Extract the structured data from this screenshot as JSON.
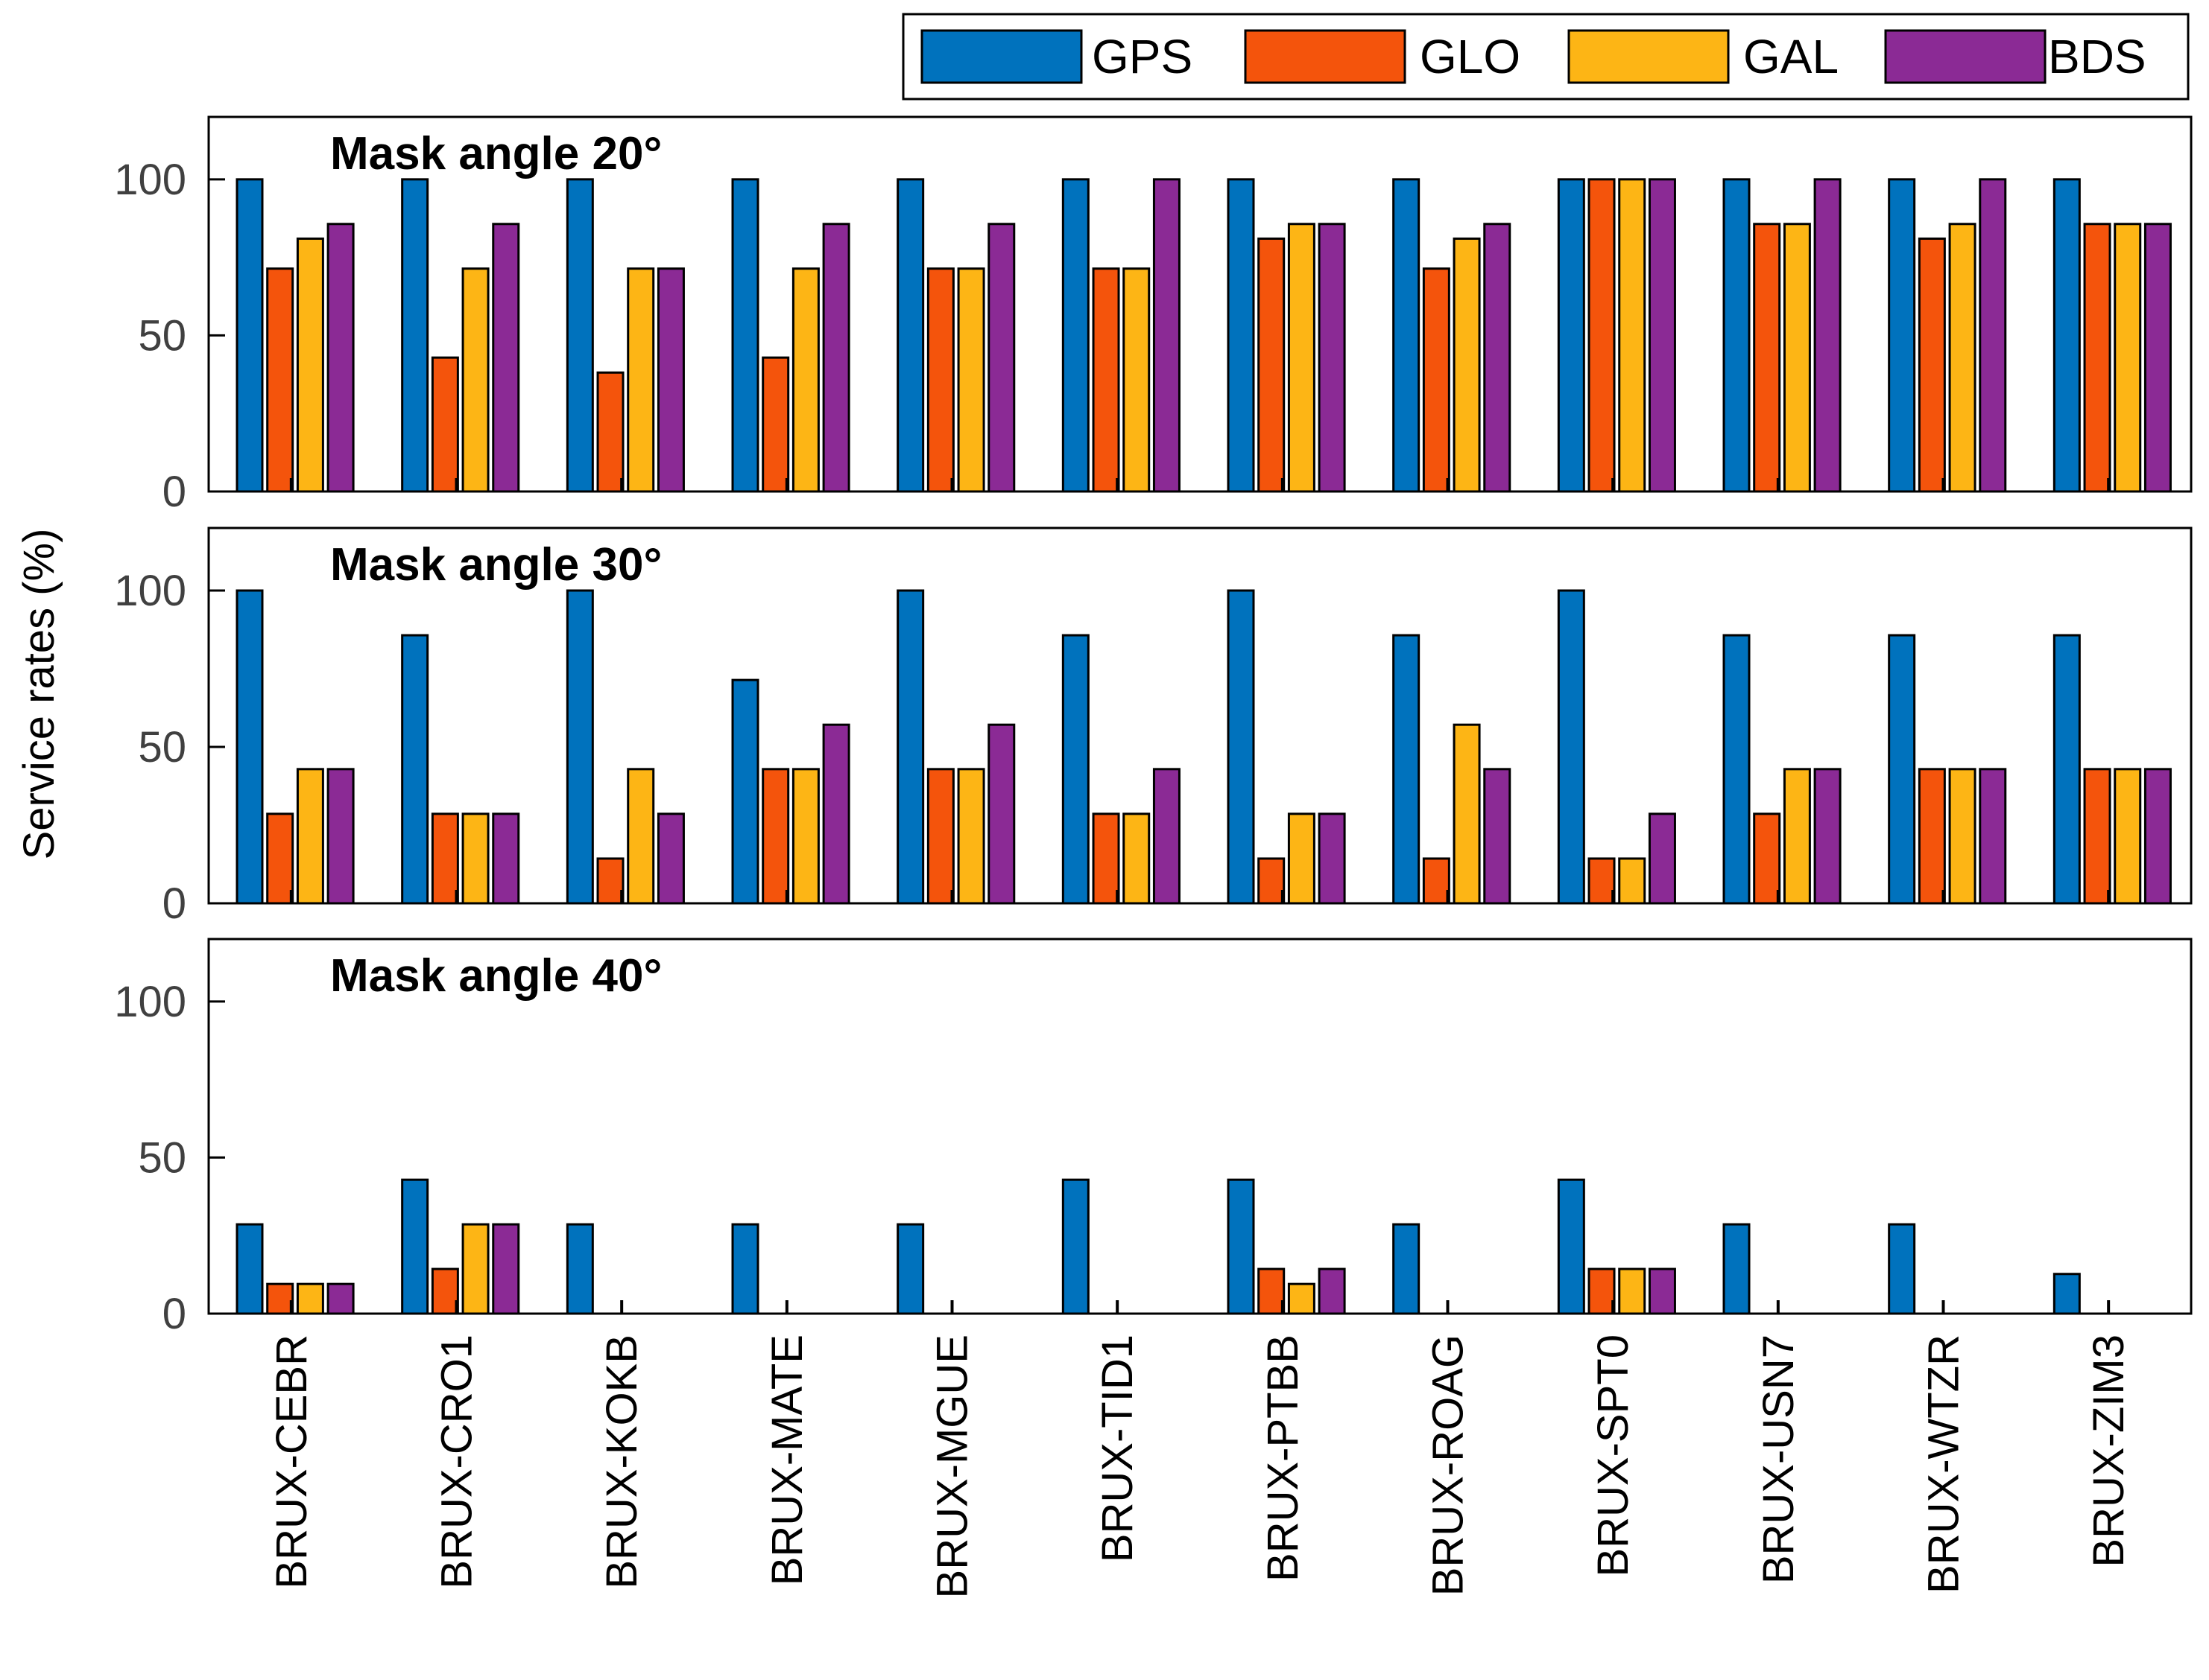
{
  "chart_data": {
    "type": "bar",
    "ylabel": "Service rates (%)",
    "ylim": [
      0,
      120
    ],
    "yticks": [
      0,
      50,
      100
    ],
    "categories": [
      "BRUX-CEBR",
      "BRUX-CRO1",
      "BRUX-KOKB",
      "BRUX-MATE",
      "BRUX-MGUE",
      "BRUX-TID1",
      "BRUX-PTBB",
      "BRUX-ROAG",
      "BRUX-SPT0",
      "BRUX-USN7",
      "BRUX-WTZR",
      "BRUX-ZIM3"
    ],
    "legend": {
      "placement": "top-right",
      "entries": [
        {
          "name": "GPS",
          "color": "#0072BD"
        },
        {
          "name": "GLO",
          "color": "#F4540C"
        },
        {
          "name": "GAL",
          "color": "#FDB515"
        },
        {
          "name": "BDS",
          "color": "#8B2A95"
        }
      ]
    },
    "panels": [
      {
        "title": "Mask angle 20°",
        "series": [
          {
            "name": "GPS",
            "values": [
              100,
              100,
              100,
              100,
              100,
              100,
              100,
              100,
              100,
              100,
              100,
              100
            ]
          },
          {
            "name": "GLO",
            "values": [
              71.4,
              42.9,
              38.1,
              42.9,
              71.4,
              71.4,
              81,
              71.4,
              100,
              85.7,
              81,
              85.7
            ]
          },
          {
            "name": "GAL",
            "values": [
              81,
              71.4,
              71.4,
              71.4,
              71.4,
              71.4,
              85.7,
              81,
              100,
              85.7,
              85.7,
              85.7
            ]
          },
          {
            "name": "BDS",
            "values": [
              85.7,
              85.7,
              71.4,
              85.7,
              85.7,
              100,
              85.7,
              85.7,
              100,
              100,
              100,
              85.7
            ]
          }
        ]
      },
      {
        "title": "Mask angle 30°",
        "series": [
          {
            "name": "GPS",
            "values": [
              100,
              85.7,
              100,
              71.4,
              100,
              85.7,
              100,
              85.7,
              100,
              85.7,
              85.7,
              85.7
            ]
          },
          {
            "name": "GLO",
            "values": [
              28.6,
              28.6,
              14.3,
              42.9,
              42.9,
              28.6,
              14.3,
              14.3,
              14.3,
              28.6,
              42.9,
              42.9
            ]
          },
          {
            "name": "GAL",
            "values": [
              42.9,
              28.6,
              42.9,
              42.9,
              42.9,
              28.6,
              28.6,
              57.1,
              14.3,
              42.9,
              42.9,
              42.9
            ]
          },
          {
            "name": "BDS",
            "values": [
              42.9,
              28.6,
              28.6,
              57.1,
              57.1,
              42.9,
              28.6,
              42.9,
              28.6,
              42.9,
              42.9,
              42.9
            ]
          }
        ]
      },
      {
        "title": "Mask angle 40°",
        "series": [
          {
            "name": "GPS",
            "values": [
              28.6,
              42.9,
              28.6,
              28.6,
              28.6,
              42.9,
              42.9,
              28.6,
              42.9,
              28.6,
              28.6,
              12.7
            ]
          },
          {
            "name": "GLO",
            "values": [
              9.5,
              14.3,
              0,
              0,
              0,
              0,
              14.3,
              0,
              14.3,
              0,
              0,
              0
            ]
          },
          {
            "name": "GAL",
            "values": [
              9.5,
              28.6,
              0,
              0,
              0,
              0,
              9.5,
              0,
              14.3,
              0,
              0,
              0
            ]
          },
          {
            "name": "BDS",
            "values": [
              9.5,
              28.6,
              0,
              0,
              0,
              0,
              14.3,
              0,
              14.3,
              0,
              0,
              0
            ]
          }
        ]
      }
    ]
  }
}
